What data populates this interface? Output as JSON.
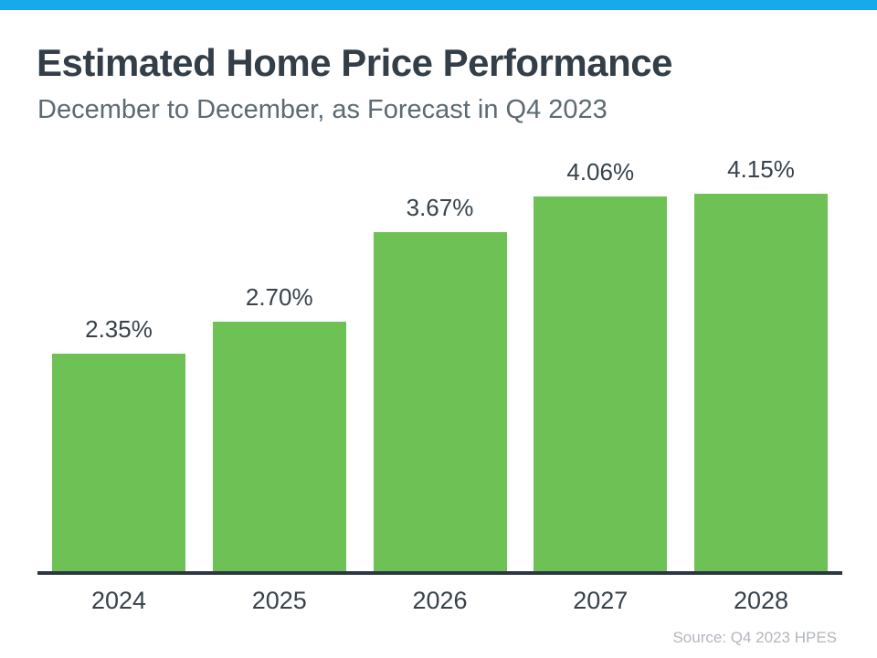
{
  "page": {
    "accent_color": "#18a9ea",
    "title": "Estimated Home Price Performance",
    "subtitle": "December to December, as Forecast in Q4 2023",
    "source": "Source: Q4 2023 HPES"
  },
  "chart_data": {
    "type": "bar",
    "title": "Estimated Home Price Performance",
    "subtitle": "December to December, as Forecast in Q4 2023",
    "categories": [
      "2024",
      "2025",
      "2026",
      "2027",
      "2028"
    ],
    "values": [
      2.35,
      2.7,
      3.67,
      4.06,
      4.15
    ],
    "value_labels": [
      "2.35%",
      "2.70%",
      "3.67%",
      "4.06%",
      "4.15%"
    ],
    "xlabel": "",
    "ylabel": "",
    "ylim": [
      0,
      4.5
    ],
    "grid": false,
    "legend": false,
    "bar_color": "#6ec154",
    "label_color": "#37424a",
    "source": "Source: Q4 2023 HPES"
  }
}
